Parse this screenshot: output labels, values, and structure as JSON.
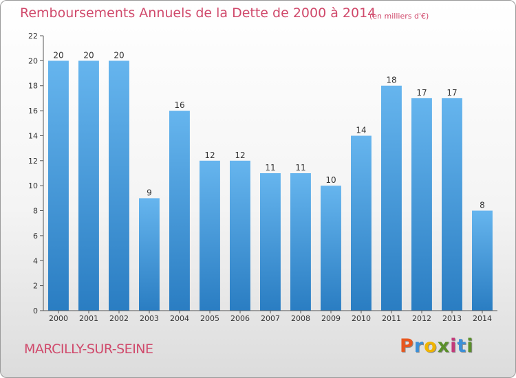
{
  "header": {
    "title": "Remboursements Annuels de la Dette de 2000 à 2014",
    "unit": "(en milliers d'€)"
  },
  "footer": {
    "town": "MARCILLY-SUR-SEINE",
    "logo_letters": [
      "P",
      "r",
      "o",
      "x",
      "i",
      "t",
      "i"
    ]
  },
  "colors": {
    "title": "#d0496b",
    "bar_top": "#66b5ee",
    "bar_bottom": "#2a7dc2",
    "axis": "#333333"
  },
  "chart_data": {
    "type": "bar",
    "title": "Remboursements Annuels de la Dette de 2000 à 2014",
    "xlabel": "",
    "ylabel": "",
    "categories": [
      "2000",
      "2001",
      "2002",
      "2003",
      "2004",
      "2005",
      "2006",
      "2007",
      "2008",
      "2009",
      "2010",
      "2011",
      "2012",
      "2013",
      "2014"
    ],
    "values": [
      20,
      20,
      20,
      9,
      16,
      12,
      12,
      11,
      11,
      10,
      14,
      18,
      17,
      17,
      8
    ],
    "ylim": [
      0,
      22
    ],
    "yticks": [
      0,
      2,
      4,
      6,
      8,
      10,
      12,
      14,
      16,
      18,
      20,
      22
    ],
    "grid": false,
    "data_labels": true
  }
}
